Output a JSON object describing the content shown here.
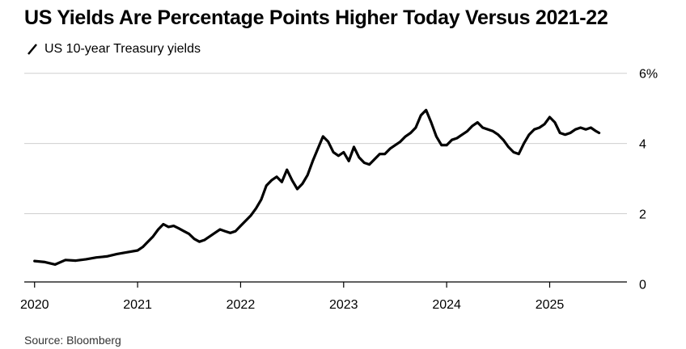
{
  "title": "US Yields Are Percentage Points Higher Today Versus 2021-22",
  "source": "Source: Bloomberg",
  "chart_data": {
    "type": "line",
    "grid": "horizontal",
    "series": [
      {
        "name": "US 10-year Treasury yields",
        "color": "#000000",
        "points": [
          [
            2020.0,
            0.65
          ],
          [
            2020.1,
            0.62
          ],
          [
            2020.2,
            0.55
          ],
          [
            2020.3,
            0.68
          ],
          [
            2020.4,
            0.66
          ],
          [
            2020.5,
            0.7
          ],
          [
            2020.6,
            0.75
          ],
          [
            2020.7,
            0.78
          ],
          [
            2020.8,
            0.85
          ],
          [
            2020.9,
            0.9
          ],
          [
            2021.0,
            0.95
          ],
          [
            2021.05,
            1.05
          ],
          [
            2021.1,
            1.2
          ],
          [
            2021.15,
            1.35
          ],
          [
            2021.2,
            1.55
          ],
          [
            2021.25,
            1.7
          ],
          [
            2021.3,
            1.62
          ],
          [
            2021.35,
            1.65
          ],
          [
            2021.4,
            1.58
          ],
          [
            2021.45,
            1.5
          ],
          [
            2021.5,
            1.42
          ],
          [
            2021.55,
            1.28
          ],
          [
            2021.6,
            1.2
          ],
          [
            2021.65,
            1.25
          ],
          [
            2021.7,
            1.35
          ],
          [
            2021.75,
            1.45
          ],
          [
            2021.8,
            1.55
          ],
          [
            2021.85,
            1.5
          ],
          [
            2021.9,
            1.45
          ],
          [
            2021.95,
            1.5
          ],
          [
            2022.0,
            1.65
          ],
          [
            2022.05,
            1.8
          ],
          [
            2022.1,
            1.95
          ],
          [
            2022.15,
            2.15
          ],
          [
            2022.2,
            2.4
          ],
          [
            2022.25,
            2.8
          ],
          [
            2022.3,
            2.95
          ],
          [
            2022.35,
            3.05
          ],
          [
            2022.4,
            2.9
          ],
          [
            2022.45,
            3.25
          ],
          [
            2022.5,
            2.95
          ],
          [
            2022.55,
            2.7
          ],
          [
            2022.6,
            2.85
          ],
          [
            2022.65,
            3.1
          ],
          [
            2022.7,
            3.5
          ],
          [
            2022.75,
            3.85
          ],
          [
            2022.8,
            4.2
          ],
          [
            2022.85,
            4.05
          ],
          [
            2022.9,
            3.75
          ],
          [
            2022.95,
            3.65
          ],
          [
            2023.0,
            3.75
          ],
          [
            2023.05,
            3.5
          ],
          [
            2023.1,
            3.9
          ],
          [
            2023.15,
            3.6
          ],
          [
            2023.2,
            3.45
          ],
          [
            2023.25,
            3.4
          ],
          [
            2023.3,
            3.55
          ],
          [
            2023.35,
            3.7
          ],
          [
            2023.4,
            3.7
          ],
          [
            2023.45,
            3.85
          ],
          [
            2023.5,
            3.95
          ],
          [
            2023.55,
            4.05
          ],
          [
            2023.6,
            4.2
          ],
          [
            2023.65,
            4.3
          ],
          [
            2023.7,
            4.45
          ],
          [
            2023.75,
            4.8
          ],
          [
            2023.8,
            4.95
          ],
          [
            2023.85,
            4.6
          ],
          [
            2023.9,
            4.2
          ],
          [
            2023.95,
            3.95
          ],
          [
            2024.0,
            3.95
          ],
          [
            2024.05,
            4.1
          ],
          [
            2024.1,
            4.15
          ],
          [
            2024.15,
            4.25
          ],
          [
            2024.2,
            4.35
          ],
          [
            2024.25,
            4.5
          ],
          [
            2024.3,
            4.6
          ],
          [
            2024.35,
            4.45
          ],
          [
            2024.4,
            4.4
          ],
          [
            2024.45,
            4.35
          ],
          [
            2024.5,
            4.25
          ],
          [
            2024.55,
            4.1
          ],
          [
            2024.6,
            3.9
          ],
          [
            2024.65,
            3.75
          ],
          [
            2024.7,
            3.7
          ],
          [
            2024.75,
            4.0
          ],
          [
            2024.8,
            4.25
          ],
          [
            2024.85,
            4.4
          ],
          [
            2024.9,
            4.45
          ],
          [
            2024.95,
            4.55
          ],
          [
            2025.0,
            4.75
          ],
          [
            2025.05,
            4.6
          ],
          [
            2025.1,
            4.3
          ],
          [
            2025.15,
            4.25
          ],
          [
            2025.2,
            4.3
          ],
          [
            2025.25,
            4.4
          ],
          [
            2025.3,
            4.45
          ],
          [
            2025.35,
            4.4
          ],
          [
            2025.4,
            4.45
          ],
          [
            2025.45,
            4.35
          ],
          [
            2025.48,
            4.3
          ]
        ]
      }
    ],
    "xlim": [
      2019.9,
      2025.75
    ],
    "ylim": [
      -0.2,
      6.2
    ],
    "xticks": [
      {
        "value": 2020,
        "label": "2020"
      },
      {
        "value": 2021,
        "label": "2021"
      },
      {
        "value": 2022,
        "label": "2022"
      },
      {
        "value": 2023,
        "label": "2023"
      },
      {
        "value": 2024,
        "label": "2024"
      },
      {
        "value": 2025,
        "label": "2025"
      }
    ],
    "yticks": [
      {
        "value": 0,
        "label": "0"
      },
      {
        "value": 2,
        "label": "2"
      },
      {
        "value": 4,
        "label": "4"
      },
      {
        "value": 6,
        "label": "6%"
      }
    ]
  }
}
